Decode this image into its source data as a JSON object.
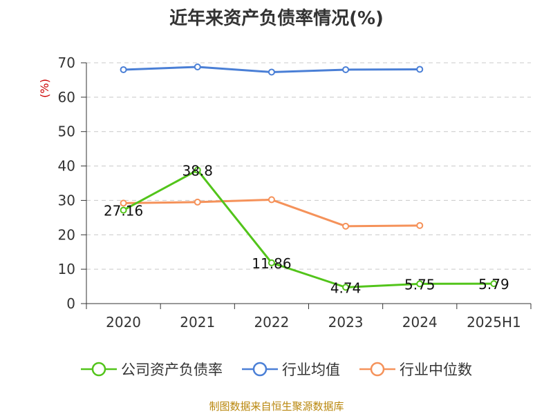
{
  "chart_data": {
    "type": "line",
    "title": "近年来资产负债率情况(%)",
    "ylabel": "(%)",
    "xlabel": "",
    "categories": [
      "2020",
      "2021",
      "2022",
      "2023",
      "2024",
      "2025H1"
    ],
    "ylim": [
      0,
      70
    ],
    "yticks": [
      0,
      10,
      20,
      30,
      40,
      50,
      60,
      70
    ],
    "grid": true,
    "legend_position": "bottom",
    "series": [
      {
        "name": "公司资产负债率",
        "color": "#52c41a",
        "values": [
          27.16,
          38.8,
          11.86,
          4.74,
          5.75,
          5.79
        ],
        "labels": [
          "27.16",
          "38.8",
          "11.86",
          "4.74",
          "5.75",
          "5.79"
        ]
      },
      {
        "name": "行业均值",
        "color": "#4a7fd6",
        "values": [
          68.0,
          68.8,
          67.3,
          68.0,
          68.1,
          null
        ]
      },
      {
        "name": "行业中位数",
        "color": "#f5925a",
        "values": [
          29.2,
          29.5,
          30.2,
          22.5,
          22.7,
          null
        ]
      }
    ]
  },
  "footer": {
    "source": "制图数据来自恒生聚源数据库"
  }
}
